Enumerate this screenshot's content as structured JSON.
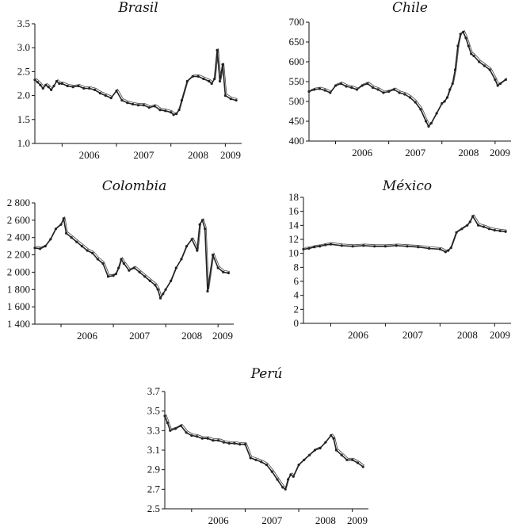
{
  "chart_data": [
    {
      "type": "line",
      "title": "Brasil",
      "ylim": [
        1.0,
        3.5
      ],
      "yticks": [
        "1.0",
        "1.5",
        "2.0",
        "2.5",
        "3.0",
        "3.5"
      ],
      "xlim": [
        2005.5,
        2009.3
      ],
      "xticks": [
        "2006",
        "2007",
        "2008",
        "2009"
      ],
      "series": [
        {
          "name": "Brasil",
          "x": [
            2005.5,
            2005.55,
            2005.6,
            2005.65,
            2005.7,
            2005.75,
            2005.8,
            2005.85,
            2005.9,
            2005.95,
            2006.0,
            2006.1,
            2006.2,
            2006.3,
            2006.4,
            2006.5,
            2006.6,
            2006.7,
            2006.8,
            2006.9,
            2007.0,
            2007.1,
            2007.2,
            2007.3,
            2007.4,
            2007.5,
            2007.6,
            2007.7,
            2007.8,
            2007.9,
            2008.0,
            2008.05,
            2008.1,
            2008.15,
            2008.2,
            2008.3,
            2008.4,
            2008.5,
            2008.6,
            2008.7,
            2008.75,
            2008.8,
            2008.85,
            2008.9,
            2008.95,
            2009.0,
            2009.1,
            2009.2
          ],
          "values": [
            2.33,
            2.28,
            2.22,
            2.15,
            2.22,
            2.18,
            2.12,
            2.2,
            2.3,
            2.25,
            2.25,
            2.2,
            2.18,
            2.2,
            2.15,
            2.15,
            2.12,
            2.05,
            2.0,
            1.95,
            2.1,
            1.9,
            1.85,
            1.82,
            1.8,
            1.8,
            1.75,
            1.78,
            1.7,
            1.68,
            1.65,
            1.6,
            1.62,
            1.7,
            1.9,
            2.3,
            2.4,
            2.4,
            2.35,
            2.3,
            2.25,
            2.35,
            2.95,
            2.3,
            2.65,
            2.0,
            1.93,
            1.9
          ]
        }
      ]
    },
    {
      "type": "line",
      "title": "Chile",
      "ylim": [
        400,
        700
      ],
      "yticks": [
        "400",
        "450",
        "500",
        "550",
        "600",
        "650",
        "700"
      ],
      "xlim": [
        2005.5,
        2009.3
      ],
      "xticks": [
        "2006",
        "2007",
        "2008",
        "2009"
      ],
      "series": [
        {
          "name": "Chile",
          "x": [
            2005.5,
            2005.6,
            2005.7,
            2005.8,
            2005.9,
            2006.0,
            2006.1,
            2006.2,
            2006.3,
            2006.4,
            2006.5,
            2006.6,
            2006.7,
            2006.8,
            2006.9,
            2007.0,
            2007.1,
            2007.2,
            2007.3,
            2007.4,
            2007.5,
            2007.6,
            2007.7,
            2007.75,
            2007.8,
            2007.9,
            2008.0,
            2008.05,
            2008.1,
            2008.15,
            2008.2,
            2008.25,
            2008.3,
            2008.35,
            2008.4,
            2008.45,
            2008.5,
            2008.55,
            2008.6,
            2008.7,
            2008.8,
            2008.9,
            2009.0,
            2009.05,
            2009.1,
            2009.2
          ],
          "values": [
            525,
            530,
            532,
            528,
            522,
            540,
            545,
            538,
            535,
            530,
            540,
            545,
            535,
            530,
            522,
            525,
            530,
            522,
            518,
            510,
            498,
            480,
            450,
            437,
            445,
            470,
            495,
            500,
            510,
            530,
            545,
            580,
            640,
            670,
            675,
            660,
            640,
            620,
            615,
            600,
            590,
            580,
            555,
            540,
            545,
            555
          ]
        }
      ]
    },
    {
      "type": "line",
      "title": "Colombia",
      "ylim": [
        1400,
        2800
      ],
      "yticks": [
        "1 400",
        "1 600",
        "1 800",
        "2 000",
        "2 200",
        "2 400",
        "2 600",
        "2 800"
      ],
      "xlim": [
        2005.5,
        2009.3
      ],
      "xticks": [
        "2006",
        "2007",
        "2008",
        "2009"
      ],
      "series": [
        {
          "name": "Colombia",
          "x": [
            2005.5,
            2005.6,
            2005.7,
            2005.8,
            2005.9,
            2006.0,
            2006.05,
            2006.1,
            2006.2,
            2006.3,
            2006.4,
            2006.5,
            2006.6,
            2006.7,
            2006.8,
            2006.9,
            2007.0,
            2007.05,
            2007.1,
            2007.15,
            2007.2,
            2007.3,
            2007.4,
            2007.5,
            2007.6,
            2007.7,
            2007.8,
            2007.85,
            2007.9,
            2007.95,
            2008.0,
            2008.1,
            2008.2,
            2008.3,
            2008.4,
            2008.5,
            2008.6,
            2008.65,
            2008.7,
            2008.75,
            2008.8,
            2008.9,
            2009.0,
            2009.1,
            2009.2
          ],
          "values": [
            2280,
            2270,
            2300,
            2380,
            2500,
            2550,
            2620,
            2450,
            2400,
            2350,
            2300,
            2250,
            2220,
            2150,
            2100,
            1950,
            1960,
            1980,
            2050,
            2150,
            2100,
            2020,
            2050,
            2000,
            1950,
            1900,
            1850,
            1800,
            1700,
            1750,
            1800,
            1900,
            2050,
            2150,
            2300,
            2380,
            2250,
            2550,
            2600,
            2500,
            1780,
            2200,
            2050,
            2000,
            1990
          ]
        }
      ]
    },
    {
      "type": "line",
      "title": "México",
      "ylim": [
        0,
        18
      ],
      "yticks": [
        "0",
        "2",
        "4",
        "6",
        "8",
        "10",
        "12",
        "14",
        "16",
        "18"
      ],
      "xlim": [
        2005.5,
        2009.3
      ],
      "xticks": [
        "2006",
        "2007",
        "2008",
        "2009"
      ],
      "series": [
        {
          "name": "México",
          "x": [
            2005.5,
            2005.6,
            2005.7,
            2005.8,
            2005.9,
            2006.0,
            2006.2,
            2006.4,
            2006.6,
            2006.8,
            2007.0,
            2007.2,
            2007.4,
            2007.6,
            2007.8,
            2008.0,
            2008.1,
            2008.15,
            2008.2,
            2008.3,
            2008.4,
            2008.5,
            2008.55,
            2008.6,
            2008.7,
            2008.8,
            2008.9,
            2009.0,
            2009.1,
            2009.2
          ],
          "values": [
            10.6,
            10.7,
            10.9,
            11.0,
            11.2,
            11.3,
            11.1,
            11.0,
            11.1,
            11.0,
            11.0,
            11.1,
            11.0,
            10.9,
            10.7,
            10.6,
            10.2,
            10.4,
            10.8,
            13.0,
            13.5,
            14.0,
            14.5,
            15.3,
            14.0,
            13.8,
            13.5,
            13.3,
            13.2,
            13.1
          ]
        }
      ]
    },
    {
      "type": "line",
      "title": "Perú",
      "ylim": [
        2.5,
        3.7
      ],
      "yticks": [
        "2.5",
        "2.7",
        "2.9",
        "3.1",
        "3.3",
        "3.5",
        "3.7"
      ],
      "xlim": [
        2005.5,
        2009.3
      ],
      "xticks": [
        "2006",
        "2007",
        "2008",
        "2009"
      ],
      "series": [
        {
          "name": "Perú",
          "x": [
            2005.5,
            2005.55,
            2005.6,
            2005.7,
            2005.8,
            2005.9,
            2006.0,
            2006.1,
            2006.2,
            2006.3,
            2006.4,
            2006.5,
            2006.6,
            2006.7,
            2006.8,
            2006.9,
            2007.0,
            2007.1,
            2007.2,
            2007.3,
            2007.4,
            2007.5,
            2007.6,
            2007.7,
            2007.75,
            2007.8,
            2007.85,
            2007.9,
            2008.0,
            2008.1,
            2008.2,
            2008.3,
            2008.4,
            2008.5,
            2008.6,
            2008.65,
            2008.7,
            2008.8,
            2008.9,
            2009.0,
            2009.1,
            2009.2
          ],
          "values": [
            3.45,
            3.38,
            3.3,
            3.32,
            3.35,
            3.28,
            3.25,
            3.24,
            3.22,
            3.22,
            3.2,
            3.2,
            3.18,
            3.17,
            3.17,
            3.16,
            3.16,
            3.02,
            3.0,
            2.98,
            2.95,
            2.88,
            2.8,
            2.72,
            2.7,
            2.8,
            2.85,
            2.83,
            2.95,
            3.0,
            3.05,
            3.1,
            3.12,
            3.18,
            3.25,
            3.22,
            3.1,
            3.05,
            3.0,
            3.0,
            2.97,
            2.93
          ]
        }
      ]
    }
  ]
}
